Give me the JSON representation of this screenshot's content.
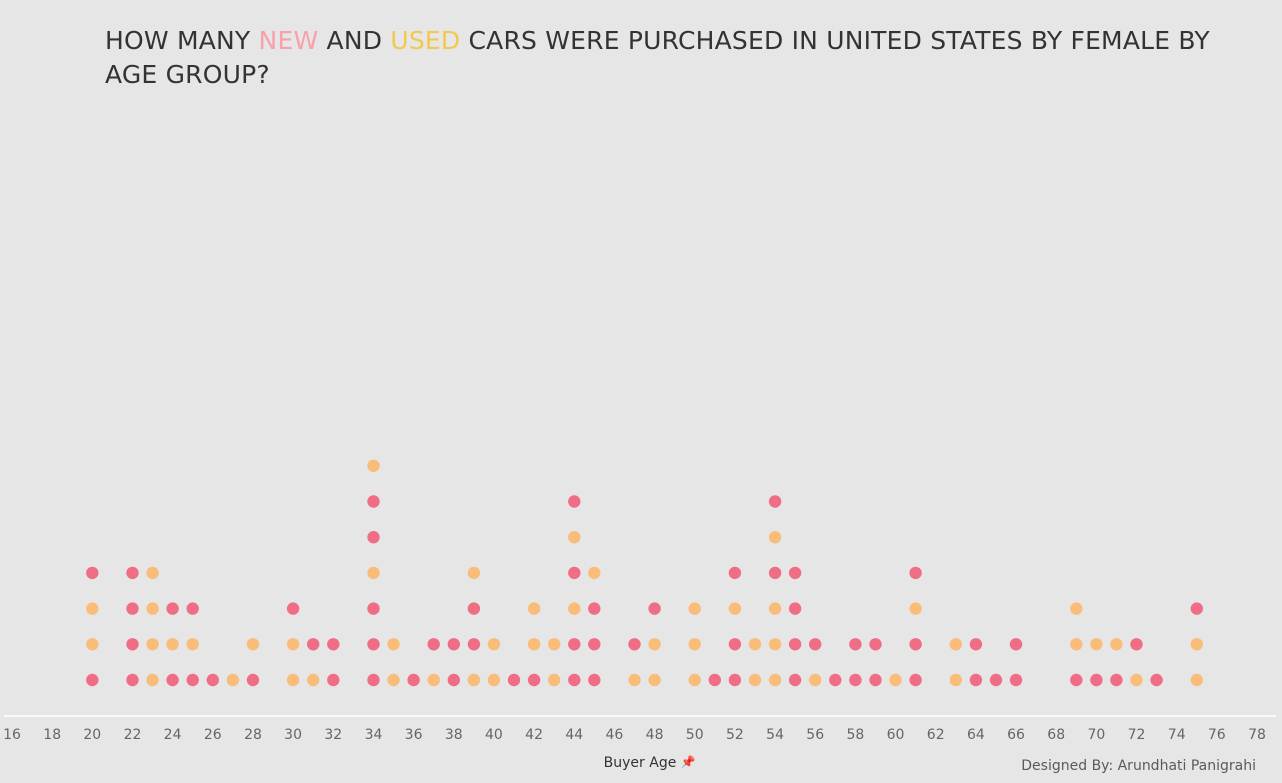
{
  "title": {
    "part1": "HOW MANY ",
    "new_word": "NEW",
    "part2": " AND ",
    "used_word": "USED",
    "part3": " CARS WERE PURCHASED IN UNITED STATES BY FEMALE BY AGE GROUP?"
  },
  "credit": "Designed By: Arundhati Panigrahi",
  "colors": {
    "new": "#ef6e85",
    "used": "#f9bd79",
    "background": "#e6e6e6",
    "axis_text": "#666666"
  },
  "chart_data": {
    "type": "dot-stack",
    "title": "HOW MANY NEW AND USED CARS WERE PURCHASED IN UNITED STATES BY FEMALE BY AGE GROUP?",
    "xlabel": "Buyer Age",
    "xlim": [
      16,
      78
    ],
    "xticks": [
      16,
      18,
      20,
      22,
      24,
      26,
      28,
      30,
      32,
      34,
      36,
      38,
      40,
      42,
      44,
      46,
      48,
      50,
      52,
      54,
      56,
      58,
      60,
      62,
      64,
      66,
      68,
      70,
      72,
      74,
      76,
      78
    ],
    "series_legend": [
      {
        "name": "New",
        "color": "#ef6e85"
      },
      {
        "name": "Used",
        "color": "#f9bd79"
      }
    ],
    "stacks": [
      {
        "age": 20,
        "dots": [
          "New",
          "Used",
          "Used",
          "New"
        ]
      },
      {
        "age": 22,
        "dots": [
          "New",
          "New",
          "New",
          "New"
        ]
      },
      {
        "age": 23,
        "dots": [
          "Used",
          "Used",
          "Used",
          "Used"
        ]
      },
      {
        "age": 24,
        "dots": [
          "New",
          "Used",
          "New"
        ]
      },
      {
        "age": 25,
        "dots": [
          "New",
          "Used",
          "New"
        ]
      },
      {
        "age": 26,
        "dots": [
          "New"
        ]
      },
      {
        "age": 27,
        "dots": [
          "Used"
        ]
      },
      {
        "age": 28,
        "dots": [
          "New",
          "Used"
        ]
      },
      {
        "age": 30,
        "dots": [
          "Used",
          "Used",
          "New"
        ]
      },
      {
        "age": 31,
        "dots": [
          "Used",
          "New"
        ]
      },
      {
        "age": 32,
        "dots": [
          "New",
          "New"
        ]
      },
      {
        "age": 34,
        "dots": [
          "New",
          "New",
          "New",
          "Used",
          "New",
          "New",
          "Used"
        ]
      },
      {
        "age": 35,
        "dots": [
          "Used",
          "Used"
        ]
      },
      {
        "age": 36,
        "dots": [
          "New"
        ]
      },
      {
        "age": 37,
        "dots": [
          "Used",
          "New"
        ]
      },
      {
        "age": 38,
        "dots": [
          "New",
          "New"
        ]
      },
      {
        "age": 39,
        "dots": [
          "Used",
          "New",
          "New",
          "Used"
        ]
      },
      {
        "age": 40,
        "dots": [
          "Used",
          "Used"
        ]
      },
      {
        "age": 41,
        "dots": [
          "New"
        ]
      },
      {
        "age": 42,
        "dots": [
          "New",
          "Used",
          "Used"
        ]
      },
      {
        "age": 43,
        "dots": [
          "Used",
          "Used"
        ]
      },
      {
        "age": 44,
        "dots": [
          "New",
          "New",
          "Used",
          "New",
          "Used",
          "New"
        ]
      },
      {
        "age": 45,
        "dots": [
          "New",
          "New",
          "New",
          "Used"
        ]
      },
      {
        "age": 47,
        "dots": [
          "Used",
          "New"
        ]
      },
      {
        "age": 48,
        "dots": [
          "Used",
          "Used",
          "New"
        ]
      },
      {
        "age": 50,
        "dots": [
          "Used",
          "Used",
          "Used"
        ]
      },
      {
        "age": 51,
        "dots": [
          "New"
        ]
      },
      {
        "age": 52,
        "dots": [
          "New",
          "New",
          "Used",
          "New"
        ]
      },
      {
        "age": 53,
        "dots": [
          "Used",
          "Used"
        ]
      },
      {
        "age": 54,
        "dots": [
          "Used",
          "Used",
          "Used",
          "New",
          "Used",
          "New"
        ]
      },
      {
        "age": 55,
        "dots": [
          "New",
          "New",
          "New",
          "New"
        ]
      },
      {
        "age": 56,
        "dots": [
          "Used",
          "New"
        ]
      },
      {
        "age": 57,
        "dots": [
          "New"
        ]
      },
      {
        "age": 58,
        "dots": [
          "New",
          "New"
        ]
      },
      {
        "age": 59,
        "dots": [
          "New",
          "New"
        ]
      },
      {
        "age": 60,
        "dots": [
          "Used"
        ]
      },
      {
        "age": 61,
        "dots": [
          "New",
          "New",
          "Used",
          "New"
        ]
      },
      {
        "age": 63,
        "dots": [
          "Used",
          "Used"
        ]
      },
      {
        "age": 64,
        "dots": [
          "New",
          "New"
        ]
      },
      {
        "age": 65,
        "dots": [
          "New"
        ]
      },
      {
        "age": 66,
        "dots": [
          "New",
          "New"
        ]
      },
      {
        "age": 69,
        "dots": [
          "New",
          "Used",
          "Used"
        ]
      },
      {
        "age": 70,
        "dots": [
          "New",
          "Used"
        ]
      },
      {
        "age": 71,
        "dots": [
          "New",
          "Used"
        ]
      },
      {
        "age": 72,
        "dots": [
          "Used",
          "New"
        ]
      },
      {
        "age": 73,
        "dots": [
          "New"
        ]
      },
      {
        "age": 75,
        "dots": [
          "Used",
          "Used",
          "New"
        ]
      }
    ]
  }
}
